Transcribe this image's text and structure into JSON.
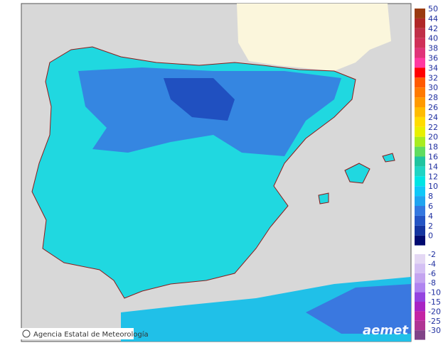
{
  "map": {
    "agency": "Agencia Estatal de Meteorología",
    "logo": "aemet",
    "legend_positive": [
      {
        "value": 50,
        "color": "#9a3a10"
      },
      {
        "value": 44,
        "color": "#b02828"
      },
      {
        "value": 42,
        "color": "#c03048"
      },
      {
        "value": 40,
        "color": "#d03058"
      },
      {
        "value": 38,
        "color": "#e03478"
      },
      {
        "value": 36,
        "color": "#ff3aa0"
      },
      {
        "value": 34,
        "color": "#ff0000"
      },
      {
        "value": 32,
        "color": "#ff5a00"
      },
      {
        "value": 30,
        "color": "#ff7a00"
      },
      {
        "value": 28,
        "color": "#ff9a00"
      },
      {
        "value": 26,
        "color": "#ffbc00"
      },
      {
        "value": 24,
        "color": "#ffdc00"
      },
      {
        "value": 22,
        "color": "#e8f000"
      },
      {
        "value": 20,
        "color": "#a8ec20"
      },
      {
        "value": 18,
        "color": "#60dc60"
      },
      {
        "value": 16,
        "color": "#20c4a0"
      },
      {
        "value": 14,
        "color": "#20d4c4"
      },
      {
        "value": 12,
        "color": "#00e4e4"
      },
      {
        "value": 10,
        "color": "#10c8f8"
      },
      {
        "value": 8,
        "color": "#20a4f0"
      },
      {
        "value": 6,
        "color": "#3478e0"
      },
      {
        "value": 4,
        "color": "#2454c4"
      },
      {
        "value": 2,
        "color": "#1434a0"
      },
      {
        "value": 0,
        "color": "#000a70"
      }
    ],
    "legend_negative": [
      {
        "value": -2,
        "color": "#e4d8f4"
      },
      {
        "value": -4,
        "color": "#d4c0f4"
      },
      {
        "value": -6,
        "color": "#c4a4f0"
      },
      {
        "value": -8,
        "color": "#b084f0"
      },
      {
        "value": -10,
        "color": "#9444e0"
      },
      {
        "value": -15,
        "color": "#a824c4"
      },
      {
        "value": -20,
        "color": "#c424a4"
      },
      {
        "value": -25,
        "color": "#b03494"
      },
      {
        "value": -30,
        "color": "#804488"
      }
    ]
  }
}
